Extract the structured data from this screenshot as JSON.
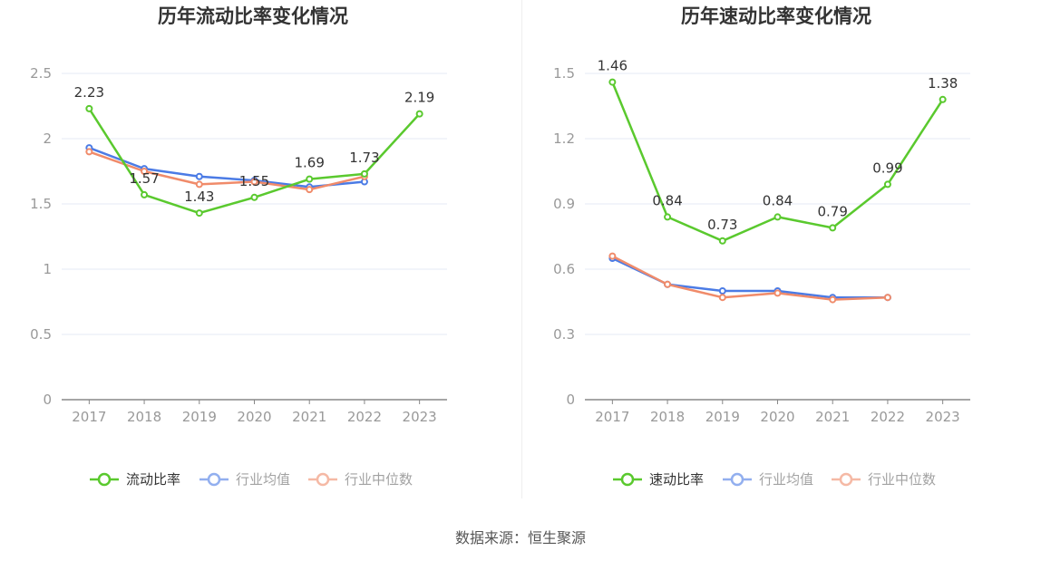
{
  "source": "数据来源：恒生聚源",
  "colors": {
    "primary": "#5ac92e",
    "average": "#4b7be5",
    "median": "#f08b6a",
    "grid": "#e6e9f5",
    "axis": "#888888",
    "text": "#999999"
  },
  "chart_data": [
    {
      "type": "line",
      "title": "历年流动比率变化情况",
      "categories": [
        "2017",
        "2018",
        "2019",
        "2020",
        "2021",
        "2022",
        "2023"
      ],
      "ylim": [
        0,
        2.5
      ],
      "yticks": [
        0,
        0.5,
        1,
        1.5,
        2,
        2.5
      ],
      "ytick_labels": [
        "0",
        "0.5",
        "1",
        "1.5",
        "2",
        "2.5"
      ],
      "grid": true,
      "legend_position": "bottom",
      "series": [
        {
          "name": "流动比率",
          "values": [
            2.23,
            1.57,
            1.43,
            1.55,
            1.69,
            1.73,
            2.19
          ],
          "labels": [
            "2.23",
            "1.57",
            "1.43",
            "1.55",
            "1.69",
            "1.73",
            "2.19"
          ]
        },
        {
          "name": "行业均值",
          "values": [
            1.93,
            1.77,
            1.71,
            1.68,
            1.63,
            1.67,
            null
          ]
        },
        {
          "name": "行业中位数",
          "values": [
            1.9,
            1.75,
            1.65,
            1.67,
            1.61,
            1.71,
            null
          ]
        }
      ]
    },
    {
      "type": "line",
      "title": "历年速动比率变化情况",
      "categories": [
        "2017",
        "2018",
        "2019",
        "2020",
        "2021",
        "2022",
        "2023"
      ],
      "ylim": [
        0,
        1.5
      ],
      "yticks": [
        0,
        0.3,
        0.6,
        0.9,
        1.2,
        1.5
      ],
      "ytick_labels": [
        "0",
        "0.3",
        "0.6",
        "0.9",
        "1.2",
        "1.5"
      ],
      "grid": true,
      "legend_position": "bottom",
      "series": [
        {
          "name": "速动比率",
          "values": [
            1.46,
            0.84,
            0.73,
            0.84,
            0.79,
            0.99,
            1.38
          ],
          "labels": [
            "1.46",
            "0.84",
            "0.73",
            "0.84",
            "0.79",
            "0.99",
            "1.38"
          ]
        },
        {
          "name": "行业均值",
          "values": [
            0.65,
            0.53,
            0.5,
            0.5,
            0.47,
            0.47,
            null
          ]
        },
        {
          "name": "行业中位数",
          "values": [
            0.66,
            0.53,
            0.47,
            0.49,
            0.46,
            0.47,
            null
          ]
        }
      ]
    }
  ]
}
